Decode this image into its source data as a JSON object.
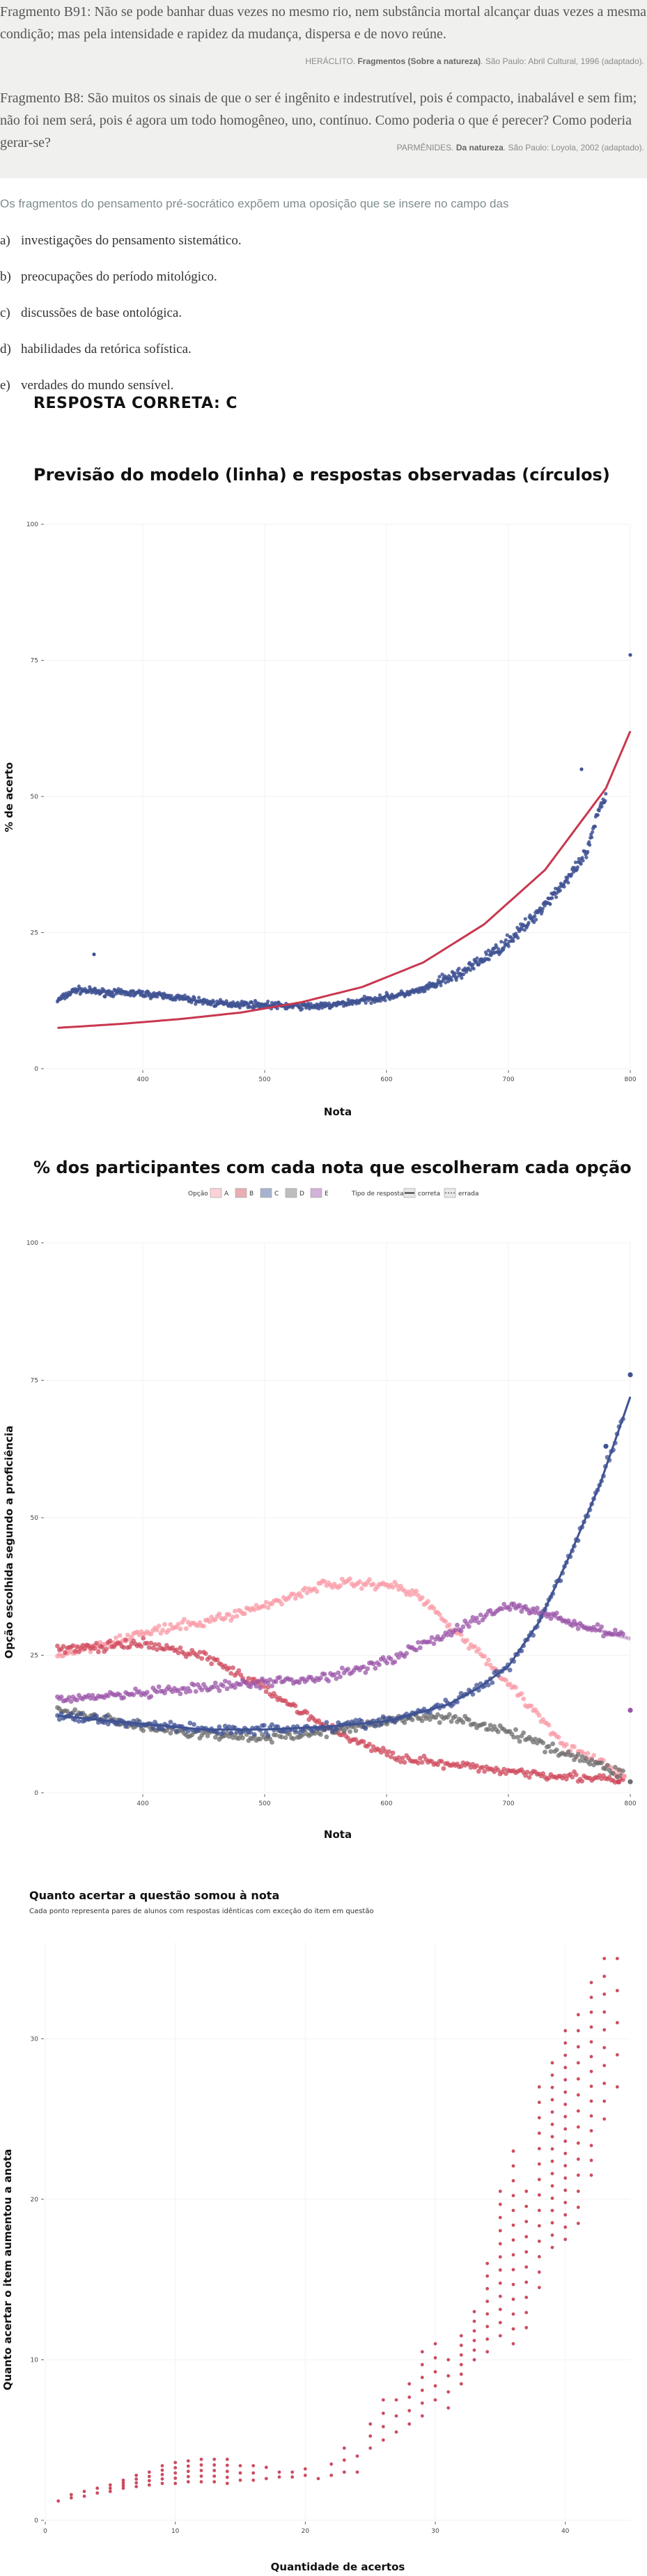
{
  "question": {
    "fragment1": "Fragmento B91: Não se pode banhar duas vezes no mesmo rio, nem substância mortal alcançar duas vezes a mesma condição; mas pela intensidade e rapidez da mudança, dispersa e de novo reúne.",
    "source1_author": "HERÁCLITO.",
    "source1_title": "Fragmentos (Sobre a natureza)",
    "source1_rest": ". São Paulo: Abril Cultural, 1996 (adaptado).",
    "fragment2": "Fragmento B8: São muitos os sinais de que o ser é ingênito e indestrutível, pois é compacto, inabalável e sem fim; não foi nem será, pois é agora um todo homogêneo, uno, contínuo. Como poderia o que é perecer? Como poderia gerar-se?",
    "source2_author": "PARMÊNIDES.",
    "source2_title": "Da natureza",
    "source2_rest": ". São Paulo: Loyola, 2002 (adaptado).",
    "stem": "Os fragmentos do pensamento pré-socrático expõem uma oposição que se insere no campo das",
    "alternatives": [
      {
        "letter": "a)",
        "text": "investigações do pensamento sistemático."
      },
      {
        "letter": "b)",
        "text": "preocupações do período mitológico."
      },
      {
        "letter": "c)",
        "text": "discussões de base ontológica."
      },
      {
        "letter": "d)",
        "text": "habilidades da retórica sofística."
      },
      {
        "letter": "e)",
        "text": "verdades do mundo sensível."
      }
    ],
    "answer": "RESPOSTA CORRETA: C"
  },
  "colors": {
    "model_line": "#c8384f",
    "observed": "#3f5293",
    "A": "#f99aa6",
    "B": "#cf4a5c",
    "C": "#3f5293",
    "D": "#6e6e6e",
    "E": "#9b55a8",
    "scatter3": "#c8384f"
  },
  "chart_data": [
    {
      "type": "scatter",
      "title": "Previsão do modelo (linha) e respostas observadas (círculos)",
      "xlabel": "Nota",
      "ylabel": "% de acerto",
      "xlim": [
        320,
        800
      ],
      "ylim": [
        0,
        100
      ],
      "xticks": [
        400,
        500,
        600,
        700,
        800
      ],
      "yticks": [
        0,
        25,
        50,
        75,
        100
      ],
      "model_curve": {
        "x": [
          330,
          380,
          430,
          480,
          530,
          580,
          630,
          680,
          730,
          780,
          800
        ],
        "y": [
          7.5,
          8.2,
          9.1,
          10.3,
          12.2,
          15.0,
          19.5,
          26.5,
          36.5,
          51.5,
          62.0
        ]
      },
      "observed": {
        "x": [
          330,
          345,
          370,
          400,
          430,
          460,
          490,
          520,
          550,
          580,
          610,
          630,
          645,
          655,
          665,
          675,
          685,
          695,
          705,
          715,
          725,
          735,
          745,
          755,
          765,
          775,
          790,
          800
        ],
        "y": [
          12.5,
          14.5,
          14.0,
          13.8,
          13.0,
          12.0,
          11.8,
          11.5,
          11.5,
          12.5,
          13.5,
          14.5,
          16.0,
          17.0,
          18.0,
          19.5,
          21.0,
          22.5,
          24.5,
          26.5,
          29.0,
          31.5,
          34.0,
          36.5,
          40.0,
          48.0,
          54.5,
          62.0
        ]
      },
      "outliers": {
        "x": [
          360,
          760,
          800
        ],
        "y": [
          21.0,
          55.0,
          76.0
        ]
      }
    },
    {
      "type": "scatter",
      "title": "% dos participantes com cada nota que escolheram cada opção",
      "xlabel": "Nota",
      "ylabel": "Opção escolhida segundo a proficiência",
      "legend_title": "Opção",
      "legend_items": [
        "A",
        "B",
        "C",
        "D",
        "E"
      ],
      "legend2_title": "Tipo de resposta",
      "legend2_items": [
        "correta",
        "errada"
      ],
      "legend_position": "top",
      "xlim": [
        320,
        800
      ],
      "ylim": [
        0,
        100
      ],
      "xticks": [
        400,
        500,
        600,
        700,
        800
      ],
      "yticks": [
        0,
        25,
        50,
        75,
        100
      ],
      "series": [
        {
          "name": "A",
          "x": [
            330,
            400,
            450,
            500,
            550,
            600,
            625,
            650,
            700,
            750,
            800
          ],
          "y": [
            25,
            29,
            31,
            34,
            38,
            38,
            36,
            31,
            20,
            8,
            3
          ]
        },
        {
          "name": "B",
          "x": [
            330,
            400,
            450,
            500,
            550,
            600,
            650,
            700,
            750,
            800
          ],
          "y": [
            26,
            27,
            25,
            19,
            12,
            7,
            5,
            4,
            3,
            2
          ]
        },
        {
          "name": "C",
          "x": [
            330,
            400,
            450,
            500,
            550,
            600,
            625,
            650,
            675,
            700,
            725,
            750,
            775,
            800
          ],
          "y": [
            14,
            12.5,
            11.5,
            11.5,
            12,
            13,
            14.5,
            16,
            19,
            23,
            31,
            43,
            56,
            72
          ]
        },
        {
          "name": "D",
          "x": [
            330,
            400,
            450,
            500,
            550,
            600,
            650,
            700,
            750,
            800
          ],
          "y": [
            15,
            12,
            10.5,
            10,
            11,
            13,
            14,
            11,
            7,
            3
          ]
        },
        {
          "name": "E",
          "x": [
            330,
            400,
            450,
            500,
            550,
            600,
            650,
            700,
            725,
            750,
            800
          ],
          "y": [
            17,
            18,
            19,
            20,
            21,
            24,
            29,
            34,
            33,
            31,
            28
          ]
        }
      ]
    },
    {
      "type": "scatter",
      "title": "Quanto acertar a questão somou à nota",
      "subtitle": "Cada ponto representa pares de alunos com respostas idênticas com exceção do item em questão",
      "xlabel": "Quantidade de acertos",
      "ylabel": "Quanto acertar o item aumentou a anota",
      "xlim": [
        0,
        45
      ],
      "ylim": [
        0,
        36
      ],
      "xticks": [
        0,
        10,
        20,
        30,
        40
      ],
      "yticks": [
        0,
        10,
        20,
        30
      ],
      "columns": {
        "x": [
          1,
          2,
          3,
          4,
          5,
          6,
          7,
          8,
          9,
          10,
          11,
          12,
          13,
          14,
          15,
          16,
          17,
          18,
          19,
          20,
          21,
          22,
          23,
          24,
          25,
          26,
          27,
          28,
          29,
          30,
          31,
          32,
          33,
          34,
          35,
          36,
          37,
          38,
          39,
          40,
          41,
          42,
          43,
          44
        ],
        "y_min": [
          1.2,
          1.4,
          1.5,
          1.7,
          1.8,
          2.0,
          2.1,
          2.2,
          2.3,
          2.3,
          2.4,
          2.4,
          2.4,
          2.3,
          2.5,
          2.5,
          2.6,
          2.7,
          2.7,
          2.8,
          2.6,
          2.8,
          3.0,
          3.0,
          4.5,
          5.0,
          5.5,
          6.0,
          6.5,
          7.5,
          7.0,
          8.5,
          10.0,
          10.5,
          11.5,
          11.0,
          12.0,
          14.5,
          17.0,
          17.5,
          18.5,
          21.5,
          25.0,
          27.0
        ],
        "y_max": [
          1.3,
          1.6,
          1.8,
          2.0,
          2.2,
          2.5,
          2.8,
          3.0,
          3.4,
          3.6,
          3.7,
          3.8,
          3.8,
          3.8,
          3.4,
          3.4,
          3.3,
          3.0,
          3.0,
          3.2,
          3.0,
          3.5,
          4.5,
          4.0,
          6.0,
          7.5,
          7.5,
          8.5,
          10.5,
          11.0,
          10.0,
          11.5,
          13.0,
          16.0,
          20.5,
          23.0,
          20.5,
          27.0,
          28.5,
          30.5,
          31.5,
          33.5,
          35.0,
          35.0
        ],
        "n": [
          1,
          2,
          2,
          2,
          3,
          4,
          4,
          4,
          5,
          5,
          5,
          5,
          5,
          5,
          3,
          3,
          2,
          2,
          2,
          2,
          1,
          2,
          3,
          2,
          3,
          4,
          3,
          4,
          6,
          5,
          4,
          6,
          6,
          8,
          12,
          14,
          10,
          14,
          16,
          18,
          14,
          14,
          10,
          5
        ]
      }
    }
  ]
}
